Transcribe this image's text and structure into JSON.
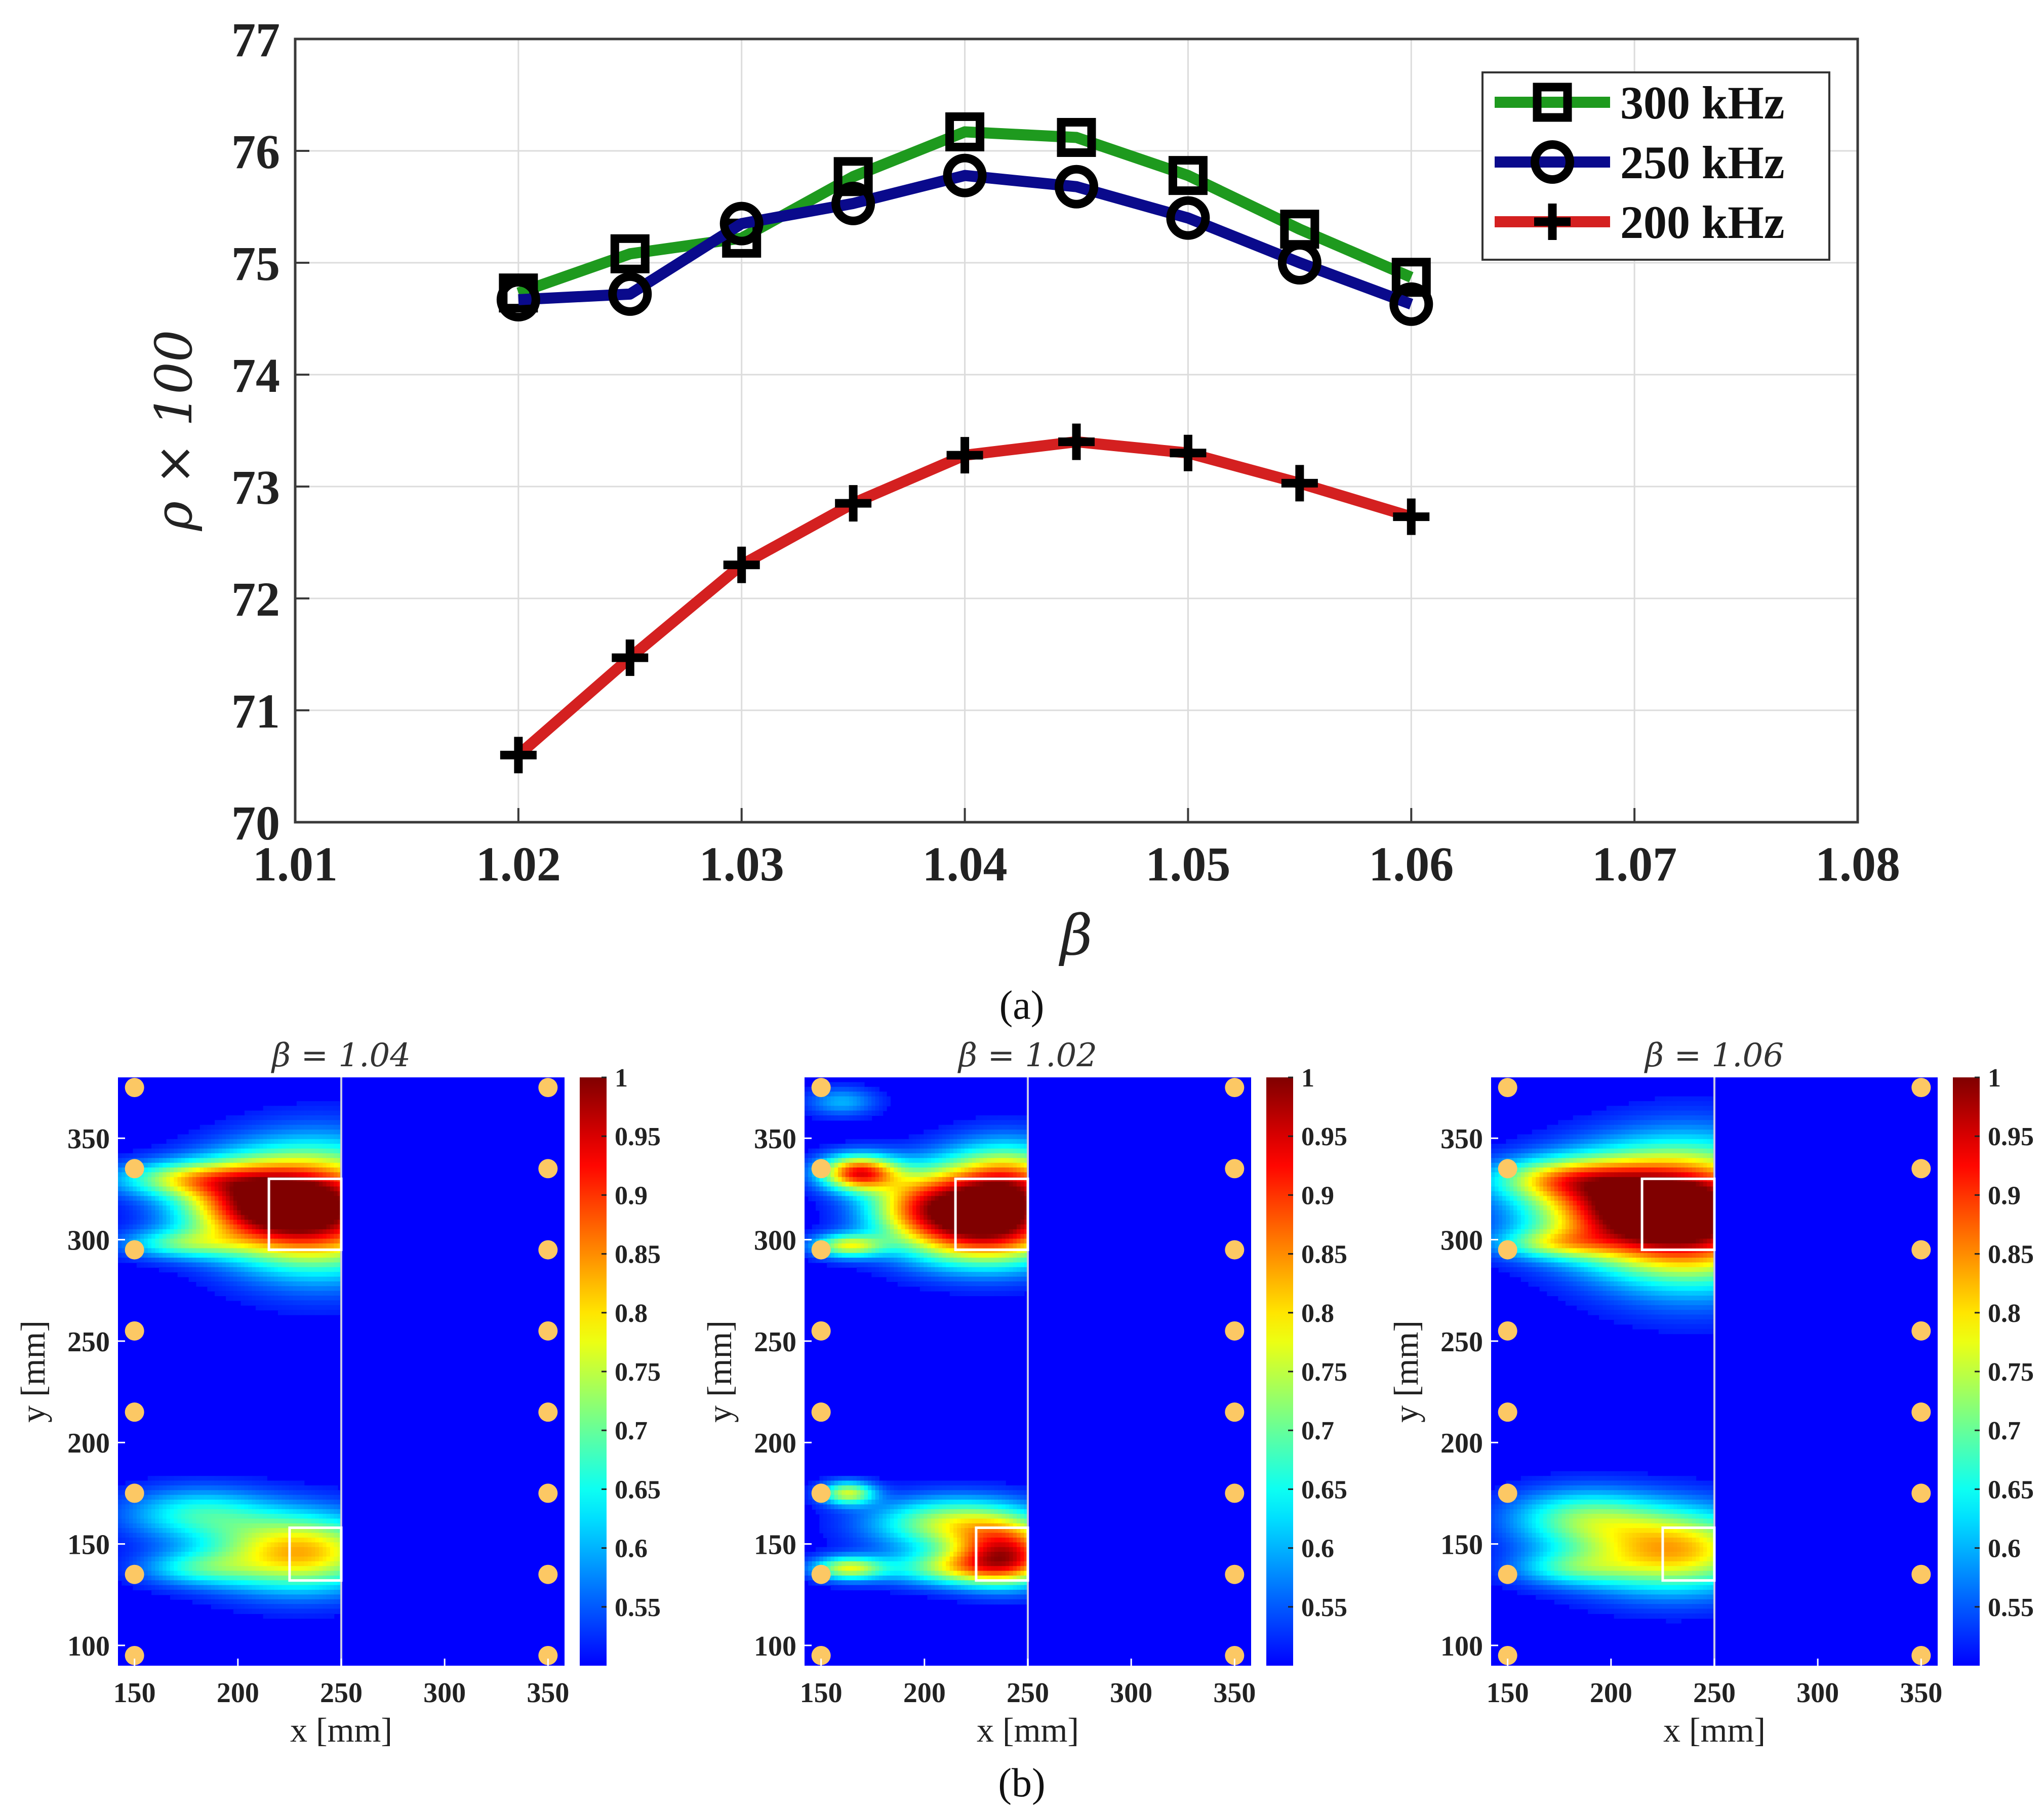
{
  "chart_data": [
    {
      "type": "line",
      "panel_label": "(a)",
      "xlabel": "β",
      "ylabel": "ρ × 100",
      "xlim": [
        1.01,
        1.08
      ],
      "ylim": [
        70,
        77
      ],
      "x_ticks": [
        "1.01",
        "1.02",
        "1.03",
        "1.04",
        "1.05",
        "1.06",
        "1.07",
        "1.08"
      ],
      "y_ticks": [
        "70",
        "71",
        "72",
        "73",
        "74",
        "75",
        "76",
        "77"
      ],
      "grid": true,
      "legend_position": "top-right",
      "x": [
        1.02,
        1.025,
        1.03,
        1.035,
        1.04,
        1.045,
        1.05,
        1.055,
        1.06
      ],
      "series": [
        {
          "name": "300 kHz",
          "color": "#1e9a1e",
          "marker": "square",
          "values": [
            74.73,
            75.08,
            75.22,
            75.77,
            76.17,
            76.12,
            75.78,
            75.3,
            74.87
          ]
        },
        {
          "name": "250 kHz",
          "color": "#0a0a8c",
          "marker": "circle",
          "values": [
            74.67,
            74.72,
            75.35,
            75.53,
            75.78,
            75.68,
            75.4,
            75.0,
            74.63
          ]
        },
        {
          "name": "200 kHz",
          "color": "#d42020",
          "marker": "plus",
          "values": [
            70.6,
            71.47,
            72.3,
            72.85,
            73.28,
            73.4,
            73.3,
            73.03,
            72.73
          ]
        }
      ]
    },
    {
      "type": "heatmap",
      "panel_label": "(b)",
      "xlabel": "x [mm]",
      "ylabel": "y [mm]",
      "xlim": [
        142,
        358
      ],
      "ylim": [
        90,
        380
      ],
      "x_ticks": [
        "150",
        "200",
        "250",
        "300",
        "350"
      ],
      "y_ticks": [
        "100",
        "150",
        "200",
        "250",
        "300",
        "350"
      ],
      "colorbar_ticks": [
        "0.55",
        "0.6",
        "0.65",
        "0.7",
        "0.75",
        "0.8",
        "0.85",
        "0.9",
        "0.95",
        "1"
      ],
      "colorbar_range": [
        0.5,
        1
      ],
      "colormap": "jet",
      "divider_x": 250,
      "transducer_color": "#fcc864",
      "transducers_x": [
        150,
        350
      ],
      "transducers_y": [
        95,
        135,
        175,
        215,
        255,
        295,
        335,
        375
      ],
      "damage_boxes": [
        {
          "x0": 215,
          "x1": 250,
          "y0": 295,
          "y1": 330
        },
        {
          "x0": 225,
          "x1": 250,
          "y0": 132,
          "y1": 158
        }
      ],
      "panels": [
        {
          "title": "β = 1.04",
          "blobs": [
            {
              "x": 240,
              "y": 315,
              "sx": 30,
              "sy": 20,
              "a": 0.47
            },
            {
              "x": 205,
              "y": 318,
              "sx": 25,
              "sy": 14,
              "a": 0.3
            },
            {
              "x": 175,
              "y": 330,
              "sx": 25,
              "sy": 6,
              "a": 0.2
            },
            {
              "x": 172,
              "y": 298,
              "sx": 20,
              "sy": 5,
              "a": 0.15
            },
            {
              "x": 230,
              "y": 146,
              "sx": 30,
              "sy": 13,
              "a": 0.33
            },
            {
              "x": 180,
              "y": 165,
              "sx": 25,
              "sy": 9,
              "a": 0.15
            },
            {
              "x": 180,
              "y": 138,
              "sx": 20,
              "sy": 6,
              "a": 0.12
            }
          ]
        },
        {
          "title": "β = 1.02",
          "blobs": [
            {
              "x": 240,
              "y": 325,
              "sx": 22,
              "sy": 14,
              "a": 0.43
            },
            {
              "x": 230,
              "y": 303,
              "sx": 28,
              "sy": 12,
              "a": 0.36
            },
            {
              "x": 200,
              "y": 318,
              "sx": 20,
              "sy": 12,
              "a": 0.3
            },
            {
              "x": 168,
              "y": 333,
              "sx": 13,
              "sy": 6,
              "a": 0.4
            },
            {
              "x": 163,
              "y": 297,
              "sx": 12,
              "sy": 4,
              "a": 0.25
            },
            {
              "x": 163,
              "y": 175,
              "sx": 9,
              "sy": 4,
              "a": 0.25
            },
            {
              "x": 163,
              "y": 138,
              "sx": 12,
              "sy": 4,
              "a": 0.25
            },
            {
              "x": 240,
              "y": 145,
              "sx": 18,
              "sy": 10,
              "a": 0.38
            },
            {
              "x": 215,
              "y": 160,
              "sx": 28,
              "sy": 9,
              "a": 0.25
            },
            {
              "x": 215,
              "y": 138,
              "sx": 25,
              "sy": 6,
              "a": 0.2
            },
            {
              "x": 160,
              "y": 368,
              "sx": 12,
              "sy": 5,
              "a": 0.1
            }
          ]
        },
        {
          "title": "β = 1.06",
          "blobs": [
            {
              "x": 240,
              "y": 312,
              "sx": 32,
              "sy": 22,
              "a": 0.5
            },
            {
              "x": 200,
              "y": 316,
              "sx": 30,
              "sy": 16,
              "a": 0.32
            },
            {
              "x": 175,
              "y": 330,
              "sx": 25,
              "sy": 7,
              "a": 0.2
            },
            {
              "x": 172,
              "y": 298,
              "sx": 20,
              "sy": 5,
              "a": 0.15
            },
            {
              "x": 230,
              "y": 147,
              "sx": 32,
              "sy": 14,
              "a": 0.33
            },
            {
              "x": 185,
              "y": 163,
              "sx": 25,
              "sy": 10,
              "a": 0.17
            },
            {
              "x": 180,
              "y": 138,
              "sx": 20,
              "sy": 6,
              "a": 0.12
            }
          ]
        }
      ]
    }
  ]
}
